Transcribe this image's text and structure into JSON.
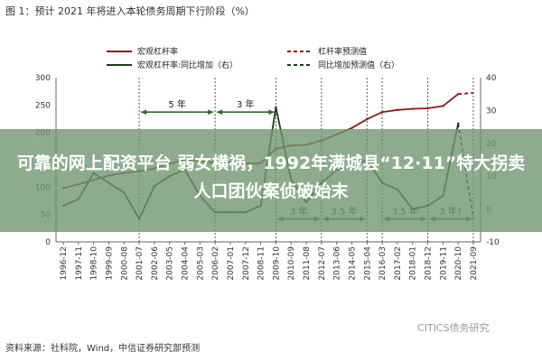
{
  "figure_title": "图 1：预计 2021 年将进入本轮债务周期下行阶段（%）",
  "source_note": "资料来源：社科院，Wind，中信证券研究部预测",
  "watermark": "CITICS债务研究",
  "overlay_headline": "可靠的网上配资平台 弱女横祸，1992年满城县“12·11”特大拐卖人口团伙案侦破始末",
  "colors": {
    "leverage": "#8b1a1a",
    "yoy": "#1a3d1a",
    "arrow": "#2e6b2e",
    "overlay": "#709670"
  },
  "chart_data": {
    "type": "line",
    "x_ticks": [
      "1996-12",
      "1997-11",
      "1998-10",
      "1999-09",
      "2000-08",
      "2001-07",
      "2002-06",
      "2003-05",
      "2004-04",
      "2005-03",
      "2006-02",
      "2007-01",
      "2007-12",
      "2008-11",
      "2009-10",
      "2010-09",
      "2011-08",
      "2012-07",
      "2013-06",
      "2014-05",
      "2015-04",
      "2016-03",
      "2017-02",
      "2018-01",
      "2018-12",
      "2019-11",
      "2020-10",
      "2021-09"
    ],
    "y_left": {
      "min": 0,
      "max": 300,
      "ticks": [
        0,
        50,
        100,
        150,
        200,
        250,
        300
      ]
    },
    "y_right": {
      "min": -10,
      "max": 40,
      "ticks": [
        -10,
        0,
        10,
        20,
        30,
        40
      ]
    },
    "legend": [
      {
        "label": "宏观杠杆率",
        "style": "solid",
        "color": "#8b1a1a"
      },
      {
        "label": "杠杆率预测值",
        "style": "dashed",
        "color": "#8b1a1a"
      },
      {
        "label": "宏观杠杆率:同比增加（右）",
        "style": "solid",
        "color": "#1a3d1a"
      },
      {
        "label": "同比增加预测值（右）",
        "style": "dashed",
        "color": "#1a3d1a"
      }
    ],
    "series": [
      {
        "name": "宏观杠杆率",
        "axis": "left",
        "x": [
          "1996-12",
          "1997-11",
          "1998-10",
          "1999-09",
          "2000-08",
          "2001-07",
          "2002-06",
          "2003-05",
          "2004-04",
          "2005-03",
          "2006-02",
          "2007-01",
          "2007-12",
          "2008-11",
          "2009-10",
          "2010-09",
          "2011-08",
          "2012-07",
          "2013-06",
          "2014-05",
          "2015-04",
          "2016-03",
          "2017-02",
          "2018-01",
          "2018-12",
          "2019-11",
          "2020-10"
        ],
        "values": [
          98,
          105,
          113,
          121,
          126,
          129,
          134,
          143,
          150,
          147,
          145,
          145,
          143,
          144,
          170,
          176,
          177,
          185,
          196,
          208,
          224,
          237,
          241,
          243,
          244,
          248,
          270
        ]
      },
      {
        "name": "杠杆率预测值",
        "axis": "left",
        "x": [
          "2020-10",
          "2021-09"
        ],
        "values": [
          270,
          272
        ]
      },
      {
        "name": "宏观杠杆率:同比增加（右）",
        "axis": "right",
        "x": [
          "1996-12",
          "1997-11",
          "1998-10",
          "1999-09",
          "2000-08",
          "2001-07",
          "2002-06",
          "2003-05",
          "2004-04",
          "2005-03",
          "2006-02",
          "2007-01",
          "2007-12",
          "2008-11",
          "2009-10",
          "2010-09",
          "2011-08",
          "2012-07",
          "2013-06",
          "2014-05",
          "2015-04",
          "2016-03",
          "2017-02",
          "2018-01",
          "2018-12",
          "2019-11",
          "2020-10"
        ],
        "values": [
          1,
          3,
          11,
          8,
          5,
          -3,
          7,
          10,
          12,
          4,
          -1,
          -1,
          -1,
          1,
          31,
          9,
          2,
          8,
          12,
          13,
          15,
          8,
          6,
          0,
          1,
          4,
          26
        ]
      },
      {
        "name": "同比增加预测值（右）",
        "axis": "right",
        "x": [
          "2020-10",
          "2021-09"
        ],
        "values": [
          26,
          -3
        ]
      }
    ],
    "annotations": [
      {
        "text": "5 年",
        "from": "2001-07",
        "to": "2006-02",
        "level_left": 237,
        "label_position": "above"
      },
      {
        "text": "3 年",
        "from": "2006-02",
        "to": "2009-10",
        "level_left": 237,
        "label_position": "above"
      },
      {
        "text": "3 年",
        "from": "2009-10",
        "to": "2012-07",
        "level_left": 42,
        "label_position": "above"
      },
      {
        "text": "3.5 年",
        "from": "2012-07",
        "to": "2015-04",
        "level_left": 42,
        "label_position": "above"
      },
      {
        "text": "3.5 年",
        "from": "2016-03",
        "to": "2018-12",
        "level_left": 42,
        "label_position": "above"
      },
      {
        "text": "3 年?",
        "from": "2018-12",
        "to": "2021-09",
        "level_left": 42,
        "label_position": "above"
      }
    ]
  }
}
